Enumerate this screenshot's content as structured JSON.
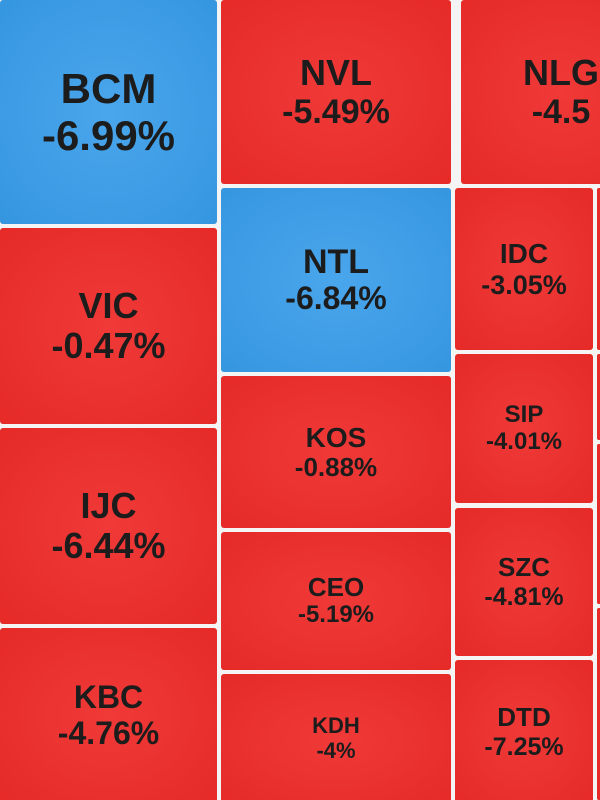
{
  "tiles": [
    {
      "ticker": "BCM",
      "change": "-6.99%",
      "color": "blue"
    },
    {
      "ticker": "VIC",
      "change": "-0.47%",
      "color": "red"
    },
    {
      "ticker": "IJC",
      "change": "-6.44%",
      "color": "red"
    },
    {
      "ticker": "KBC",
      "change": "-4.76%",
      "color": "red"
    },
    {
      "ticker": "NVL",
      "change": "-5.49%",
      "color": "red"
    },
    {
      "ticker": "NTL",
      "change": "-6.84%",
      "color": "blue"
    },
    {
      "ticker": "KOS",
      "change": "-0.88%",
      "color": "red"
    },
    {
      "ticker": "CEO",
      "change": "-5.19%",
      "color": "red"
    },
    {
      "ticker": "KDH",
      "change": "-4%",
      "color": "red"
    },
    {
      "ticker": "NLG",
      "change": "-4.5",
      "color": "red"
    },
    {
      "ticker": "IDC",
      "change": "-3.05%",
      "color": "red"
    },
    {
      "ticker": "SIP",
      "change": "-4.01%",
      "color": "red"
    },
    {
      "ticker": "SZC",
      "change": "-4.81%",
      "color": "red"
    },
    {
      "ticker": "DTD",
      "change": "-7.25%",
      "color": "red"
    }
  ]
}
